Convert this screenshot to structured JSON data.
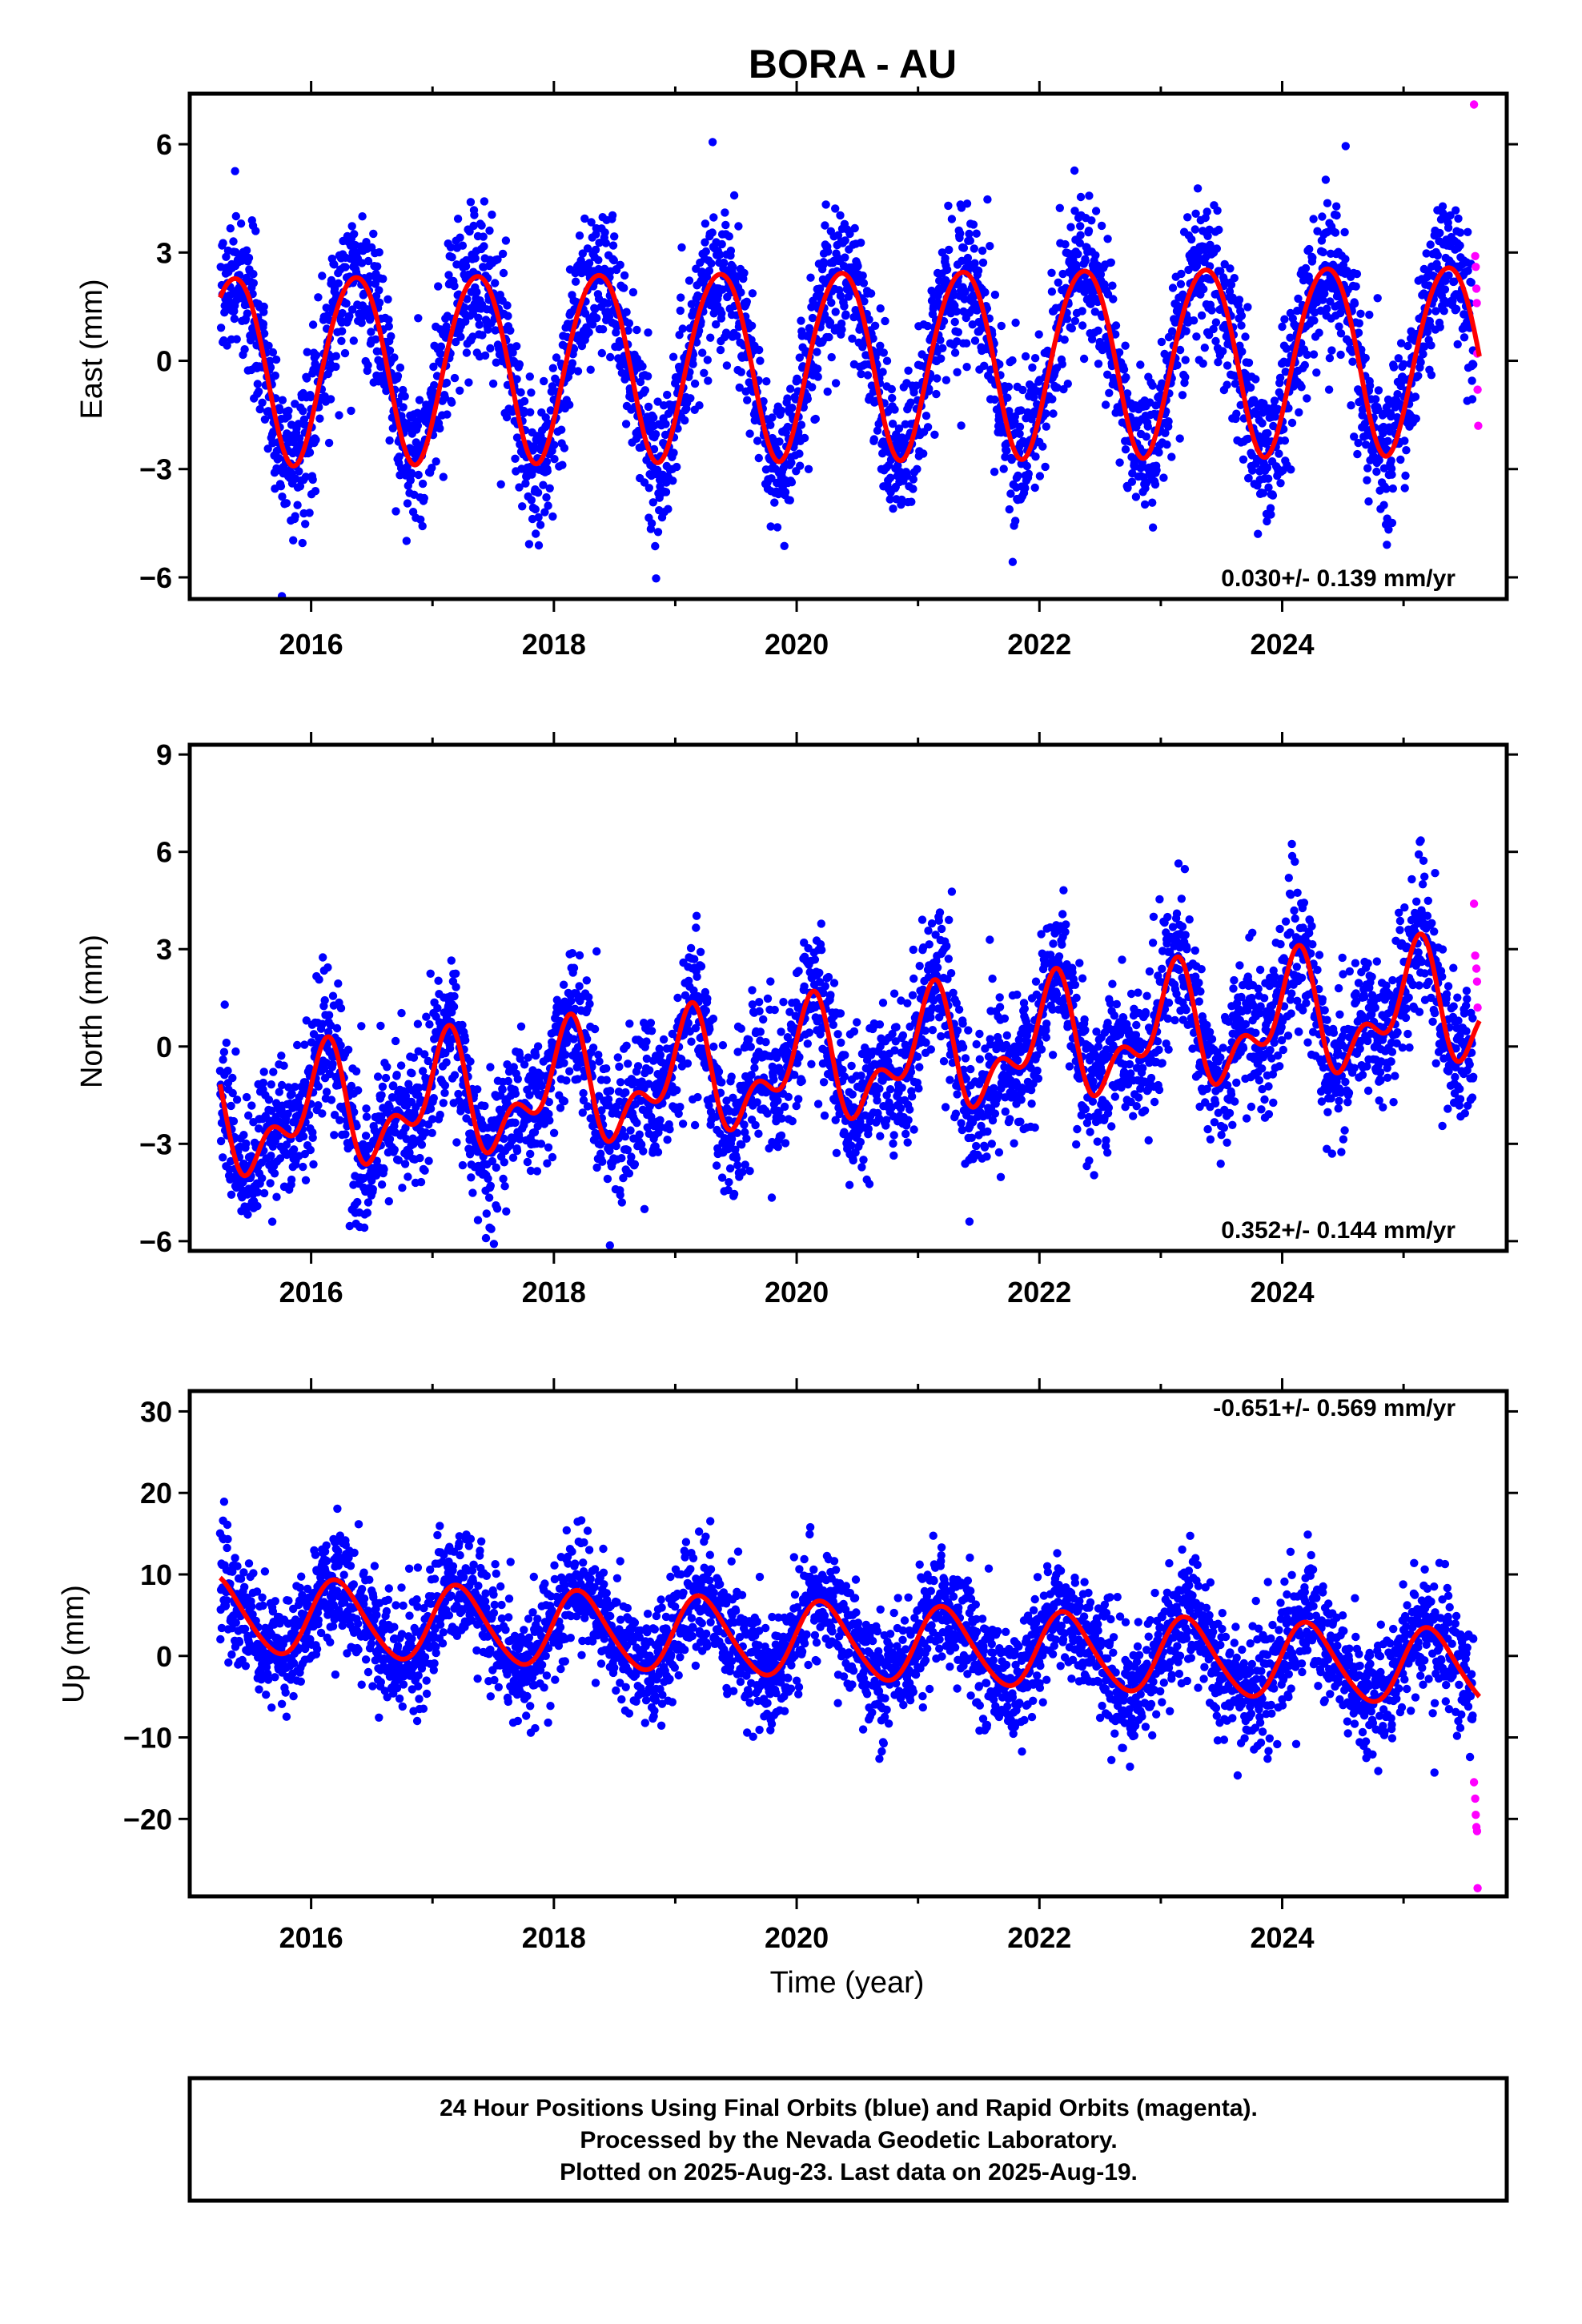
{
  "chart_data": {
    "type": "scatter",
    "title": "BORA - AU",
    "xlabel": "Time (year)",
    "xlim": [
      2015.0,
      2025.85
    ],
    "xticks": [
      2016,
      2018,
      2020,
      2022,
      2024
    ],
    "data_start": 2015.25,
    "last_data": 2025.63,
    "colors": {
      "final_orbits": "#0000ff",
      "rapid_orbits": "#ff00ff",
      "model_fit": "#ff0000",
      "frame": "#000000"
    },
    "panels": [
      {
        "ylabel": "East (mm)",
        "ylim": [
          -6.6,
          7.4
        ],
        "yticks": [
          -6,
          -3,
          0,
          3,
          6
        ],
        "ytick_labels": [
          "−6",
          "−3",
          "0",
          "3",
          "6"
        ],
        "rate_text": "0.030+/- 0.139 mm/yr",
        "rate_position": "bottom-right",
        "model": {
          "offset": 0.0,
          "trend": 0.03,
          "annual_amp": 2.6,
          "annual_phase": -0.7,
          "semi_amp": 0.2,
          "semi_phase": 0.5
        },
        "scatter_sd": 1.0,
        "series": [
          {
            "name": "Final Orbits",
            "color": "blue",
            "points": "daily"
          },
          {
            "name": "Rapid Orbits",
            "color": "magenta",
            "values": [
              {
                "x": 2025.58,
                "y": 7.1
              },
              {
                "x": 2025.59,
                "y": 2.9
              },
              {
                "x": 2025.595,
                "y": 2.6
              },
              {
                "x": 2025.6,
                "y": 2.0
              },
              {
                "x": 2025.603,
                "y": 1.6
              },
              {
                "x": 2025.607,
                "y": 0.2
              },
              {
                "x": 2025.61,
                "y": -0.8
              },
              {
                "x": 2025.615,
                "y": -1.8
              }
            ]
          }
        ]
      },
      {
        "ylabel": "North (mm)",
        "ylim": [
          -6.3,
          9.3
        ],
        "yticks": [
          -6,
          -3,
          0,
          3,
          6,
          9
        ],
        "ytick_labels": [
          "−6",
          "−3",
          "0",
          "3",
          "6",
          "9"
        ],
        "rate_text": "0.352+/- 0.144 mm/yr",
        "rate_position": "bottom-right",
        "model": {
          "offset": -0.65,
          "trend": 0.352,
          "annual_amp": 1.45,
          "annual_phase": 1.0,
          "semi_amp": 0.95,
          "semi_phase": -0.4
        },
        "scatter_sd": 1.1,
        "series": [
          {
            "name": "Final Orbits",
            "color": "blue",
            "points": "daily"
          },
          {
            "name": "Rapid Orbits",
            "color": "magenta",
            "values": [
              {
                "x": 2025.58,
                "y": 4.4
              },
              {
                "x": 2025.59,
                "y": 2.8
              },
              {
                "x": 2025.6,
                "y": 2.4
              },
              {
                "x": 2025.605,
                "y": 2.0
              },
              {
                "x": 2025.61,
                "y": 1.2
              }
            ]
          }
        ]
      },
      {
        "ylabel": "Up (mm)",
        "ylim": [
          -29.5,
          32.5
        ],
        "yticks": [
          -20,
          -10,
          0,
          10,
          20,
          30
        ],
        "ytick_labels": [
          "−20",
          "−10",
          "0",
          "10",
          "20",
          "30"
        ],
        "rate_text": "-0.651+/- 0.569 mm/yr",
        "rate_position": "top-right",
        "model": {
          "offset": 2.0,
          "trend": -0.651,
          "annual_amp": 4.6,
          "annual_phase": 0.2,
          "semi_amp": 0.5,
          "semi_phase": 0.0
        },
        "scatter_sd": 3.6,
        "series": [
          {
            "name": "Final Orbits",
            "color": "blue",
            "points": "daily"
          },
          {
            "name": "Rapid Orbits",
            "color": "magenta",
            "values": [
              {
                "x": 2025.58,
                "y": -15.5
              },
              {
                "x": 2025.59,
                "y": -17.5
              },
              {
                "x": 2025.595,
                "y": -19.5
              },
              {
                "x": 2025.6,
                "y": -21.0
              },
              {
                "x": 2025.605,
                "y": -21.5
              },
              {
                "x": 2025.61,
                "y": -28.5
              }
            ]
          }
        ]
      }
    ]
  },
  "caption": {
    "line1": "24 Hour Positions Using Final Orbits (blue) and Rapid Orbits (magenta).",
    "line2": "Processed by the Nevada Geodetic Laboratory.",
    "line3": "Plotted on 2025-Aug-23. Last data on 2025-Aug-19."
  }
}
